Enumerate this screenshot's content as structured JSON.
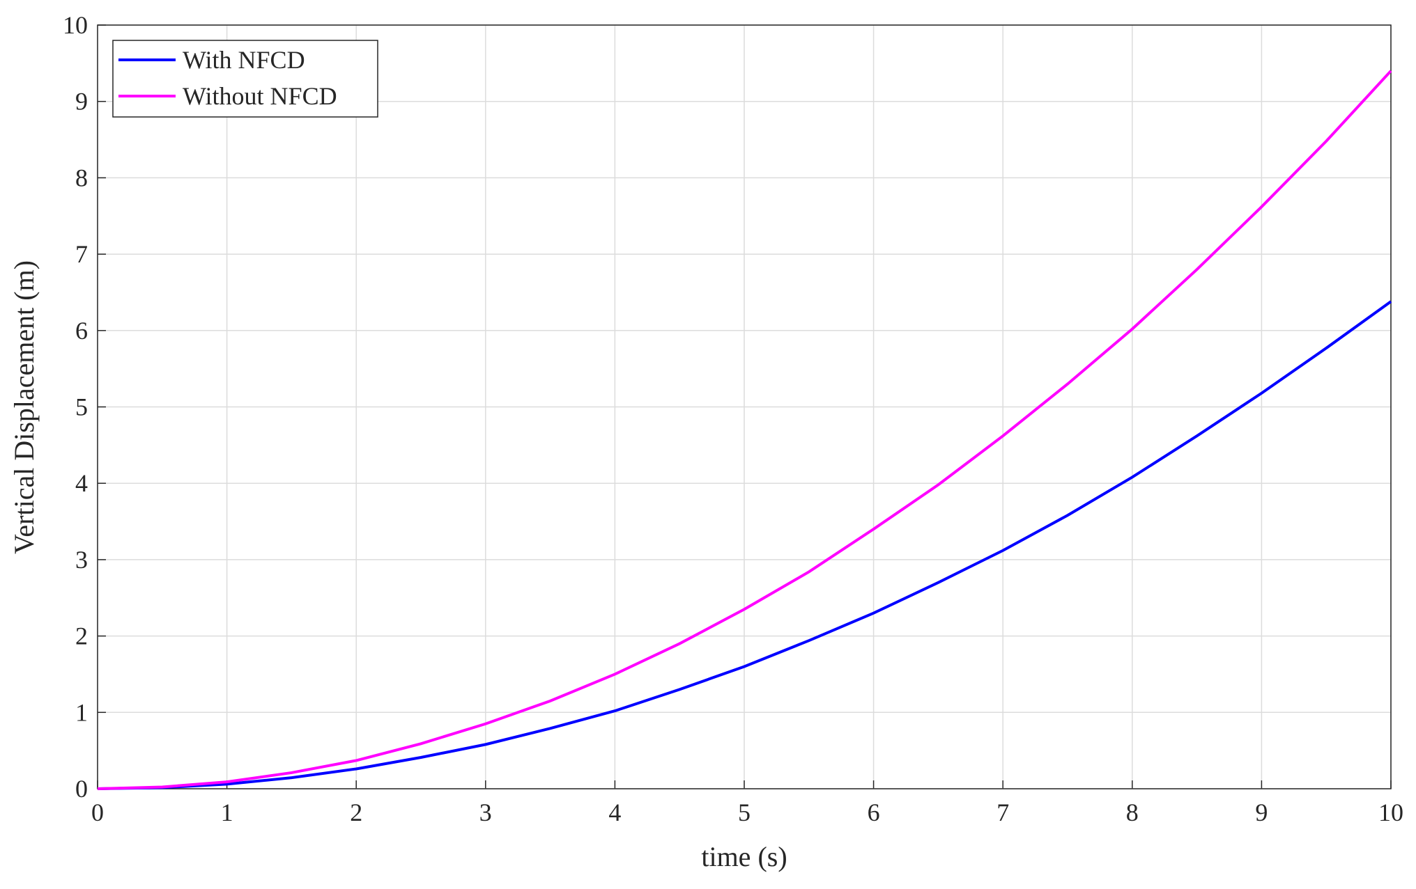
{
  "chart_data": {
    "type": "line",
    "x": [
      0,
      0.5,
      1,
      1.5,
      2,
      2.5,
      3,
      3.5,
      4,
      4.5,
      5,
      5.5,
      6,
      6.5,
      7,
      7.5,
      8,
      8.5,
      9,
      9.5,
      10
    ],
    "series": [
      {
        "name": "With NFCD",
        "color": "#0000ff",
        "values": [
          0,
          0.015,
          0.06,
          0.145,
          0.26,
          0.41,
          0.58,
          0.79,
          1.02,
          1.3,
          1.6,
          1.94,
          2.3,
          2.7,
          3.12,
          3.58,
          4.08,
          4.62,
          5.18,
          5.77,
          6.38
        ]
      },
      {
        "name": "Without NFCD",
        "color": "#ff00ff",
        "values": [
          0,
          0.023,
          0.09,
          0.21,
          0.37,
          0.59,
          0.85,
          1.15,
          1.5,
          1.9,
          2.35,
          2.84,
          3.4,
          3.98,
          4.62,
          5.3,
          6.02,
          6.8,
          7.62,
          8.48,
          9.4
        ]
      }
    ],
    "xlabel": "time (s)",
    "ylabel": "Vertical Displacement (m)",
    "xlim": [
      0,
      10
    ],
    "ylim": [
      0,
      10
    ],
    "xticks": [
      0,
      1,
      2,
      3,
      4,
      5,
      6,
      7,
      8,
      9,
      10
    ],
    "yticks": [
      0,
      1,
      2,
      3,
      4,
      5,
      6,
      7,
      8,
      9,
      10
    ],
    "grid": true,
    "legend": "northwest"
  }
}
